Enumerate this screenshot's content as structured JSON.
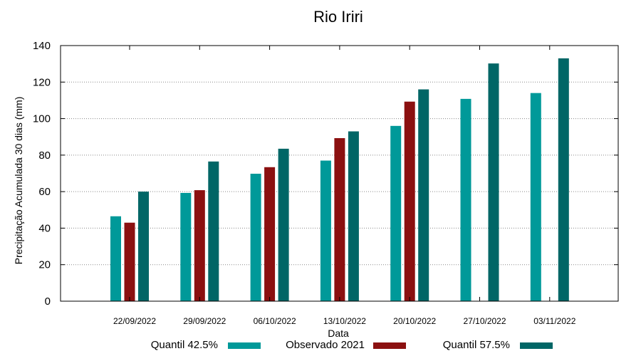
{
  "chart_data": {
    "type": "bar",
    "title": "Rio Iriri",
    "xlabel": "Data",
    "ylabel": "Precipitação Acumulada 30 dias (mm)",
    "ylim": [
      0,
      140
    ],
    "yticks": [
      0,
      20,
      40,
      60,
      80,
      100,
      120,
      140
    ],
    "grid": true,
    "legend_position": "bottom",
    "categories": [
      "22/09/2022",
      "29/09/2022",
      "06/10/2022",
      "13/10/2022",
      "20/10/2022",
      "27/10/2022",
      "03/11/2022"
    ],
    "series": [
      {
        "name": "Quantil 42.5%",
        "color": "#009999",
        "values": [
          46.5,
          59.3,
          69.8,
          77,
          96,
          110.8,
          114
        ]
      },
      {
        "name": "Observado 2021",
        "color": "#8b1010",
        "values": [
          43,
          60.8,
          73.4,
          89.3,
          109.3,
          null,
          null
        ]
      },
      {
        "name": "Quantil 57.5%",
        "color": "#006666",
        "values": [
          60,
          76.5,
          83.5,
          93,
          116,
          130.2,
          133
        ]
      }
    ]
  }
}
